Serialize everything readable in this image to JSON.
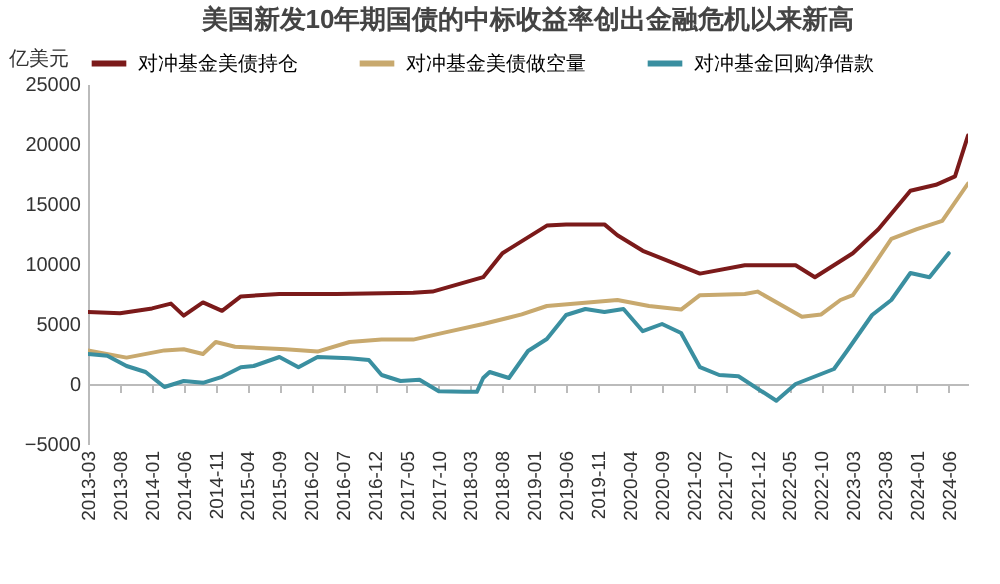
{
  "chart_data": {
    "type": "line",
    "title": "美国新发10年期国债的中标收益率创出金融危机以来新高",
    "ylabel": "亿美元",
    "legend": "top",
    "xlim": [
      "2013-03",
      "2024-09"
    ],
    "xticks": [
      "2013-03",
      "2013-08",
      "2014-01",
      "2014-06",
      "2014-11",
      "2015-04",
      "2015-09",
      "2016-02",
      "2016-07",
      "2016-12",
      "2017-05",
      "2017-10",
      "2018-03",
      "2018-08",
      "2019-01",
      "2019-06",
      "2019-11",
      "2020-04",
      "2020-09",
      "2021-02",
      "2021-07",
      "2021-12",
      "2022-05",
      "2022-10",
      "2023-03",
      "2023-08",
      "2024-01",
      "2024-06"
    ],
    "ylim": [
      -5000,
      25000
    ],
    "yticks": [
      -5000,
      0,
      5000,
      10000,
      15000,
      20000,
      25000
    ],
    "series": [
      {
        "name": "对冲基金美债持仓",
        "color": "#7b1a1a",
        "x": [
          "2013-03",
          "2013-08",
          "2014-01",
          "2014-04",
          "2014-06",
          "2014-09",
          "2014-12",
          "2015-03",
          "2015-09",
          "2016-06",
          "2017-06",
          "2017-09",
          "2018-05",
          "2018-08",
          "2019-03",
          "2019-06",
          "2019-12",
          "2020-02",
          "2020-06",
          "2021-03",
          "2021-10",
          "2022-06",
          "2022-09",
          "2023-03",
          "2023-07",
          "2023-12",
          "2024-04",
          "2024-07",
          "2024-09"
        ],
        "values": [
          6000,
          5900,
          6300,
          6700,
          5700,
          6800,
          6100,
          7300,
          7500,
          7500,
          7600,
          7700,
          8900,
          10900,
          13200,
          13300,
          13300,
          12400,
          11100,
          9200,
          9900,
          9900,
          8900,
          10900,
          12900,
          16100,
          16600,
          17300,
          20700
        ]
      },
      {
        "name": "对冲基金美债做空量",
        "color": "#c8a96e",
        "x": [
          "2013-03",
          "2013-09",
          "2014-03",
          "2014-06",
          "2014-09",
          "2014-11",
          "2015-02",
          "2015-10",
          "2016-03",
          "2016-08",
          "2017-01",
          "2017-06",
          "2017-11",
          "2018-05",
          "2018-11",
          "2019-03",
          "2020-02",
          "2020-07",
          "2020-12",
          "2021-03",
          "2021-10",
          "2021-12",
          "2022-07",
          "2022-10",
          "2023-01",
          "2023-03",
          "2023-05",
          "2023-09",
          "2024-01",
          "2024-05",
          "2024-09"
        ],
        "values": [
          2800,
          2200,
          2800,
          2900,
          2500,
          3500,
          3100,
          2900,
          2700,
          3500,
          3700,
          3700,
          4300,
          5000,
          5800,
          6500,
          7000,
          6500,
          6200,
          7400,
          7500,
          7700,
          5600,
          5800,
          7000,
          7400,
          8900,
          12100,
          12900,
          13600,
          16700
        ]
      },
      {
        "name": "对冲基金回购净借款",
        "color": "#3a8fa0",
        "x": [
          "2013-03",
          "2013-06",
          "2013-09",
          "2013-12",
          "2014-03",
          "2014-06",
          "2014-09",
          "2014-12",
          "2015-03",
          "2015-05",
          "2015-09",
          "2015-12",
          "2016-03",
          "2016-08",
          "2016-11",
          "2017-01",
          "2017-04",
          "2017-07",
          "2017-10",
          "2018-02",
          "2018-04",
          "2018-05",
          "2018-06",
          "2018-09",
          "2018-12",
          "2019-03",
          "2019-06",
          "2019-09",
          "2019-12",
          "2020-03",
          "2020-06",
          "2020-09",
          "2020-12",
          "2021-03",
          "2021-06",
          "2021-09",
          "2022-03",
          "2022-06",
          "2022-12",
          "2023-02",
          "2023-06",
          "2023-09",
          "2023-12",
          "2024-03",
          "2024-06"
        ],
        "values": [
          2500,
          2350,
          1500,
          1000,
          -250,
          250,
          100,
          600,
          1400,
          1500,
          2250,
          1400,
          2250,
          2150,
          2000,
          750,
          250,
          350,
          -600,
          -650,
          -650,
          500,
          1000,
          500,
          2750,
          3750,
          5750,
          6250,
          6000,
          6250,
          4400,
          5000,
          4250,
          1400,
          750,
          650,
          -1400,
          0,
          1250,
          2750,
          5750,
          7000,
          9250,
          8900,
          10900
        ]
      }
    ]
  }
}
